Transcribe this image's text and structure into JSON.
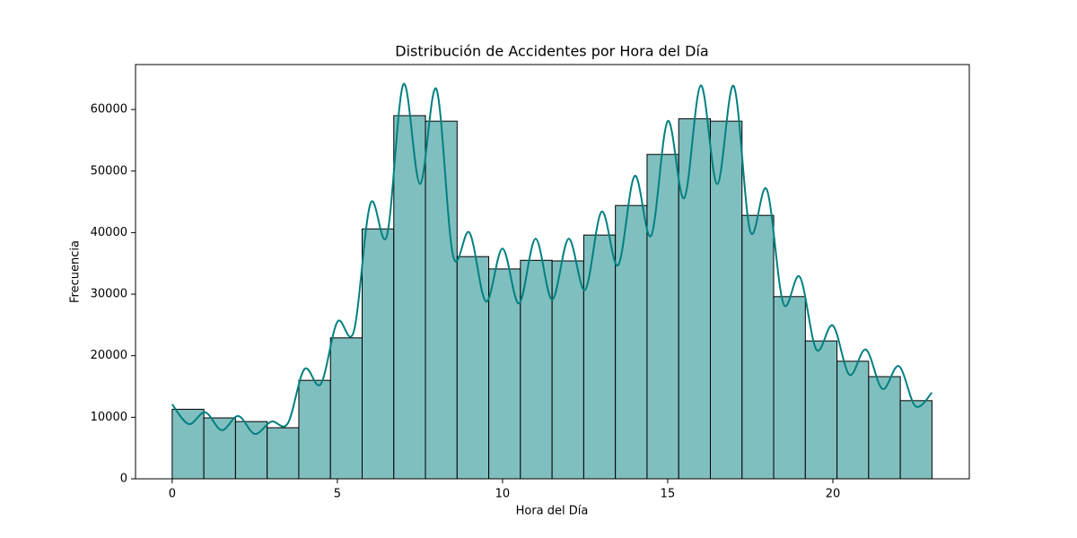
{
  "chart_data": {
    "type": "histogram",
    "title": "Distribución de Accidentes por Hora del Día",
    "x_label": "Hora del Día",
    "y_label": "Frecuencia",
    "bins": [
      0,
      0.9583,
      1.9167,
      2.875,
      3.8333,
      4.7917,
      5.75,
      6.7083,
      7.6667,
      8.625,
      9.5833,
      10.5417,
      11.5,
      12.4583,
      13.4167,
      14.375,
      15.3333,
      16.2917,
      17.25,
      18.2083,
      19.1667,
      20.125,
      21.0833,
      22.0417,
      23
    ],
    "values": [
      11300,
      9900,
      9300,
      8300,
      16000,
      22900,
      40600,
      59000,
      58100,
      36100,
      34100,
      35500,
      35400,
      39600,
      44400,
      52700,
      58500,
      58100,
      42800,
      29600,
      22400,
      19100,
      16600,
      12700
    ],
    "color": "#80bfbf",
    "edgecolor": "#000000",
    "kde": {
      "color": "#008080",
      "x": [
        0,
        0.5,
        1,
        1.5,
        2,
        2.5,
        3,
        3.5,
        4,
        4.5,
        5,
        5.5,
        6,
        6.5,
        7,
        7.5,
        8,
        8.5,
        9,
        9.5,
        10,
        10.5,
        11,
        11.5,
        12,
        12.5,
        13,
        13.5,
        14,
        14.5,
        15,
        15.5,
        16,
        16.5,
        17,
        17.5,
        18,
        18.5,
        19,
        19.5,
        20,
        20.5,
        21,
        21.5,
        22,
        22.5,
        23
      ],
      "values": [
        12100,
        8900,
        10800,
        7900,
        10200,
        7300,
        9300,
        9000,
        17800,
        15400,
        25500,
        24000,
        44700,
        39500,
        64100,
        47900,
        63300,
        36300,
        40000,
        28800,
        37400,
        28500,
        39000,
        29100,
        39000,
        30700,
        43400,
        34700,
        49200,
        39500,
        58100,
        45600,
        63900,
        47900,
        63800,
        40200,
        47000,
        28500,
        32800,
        21000,
        24900,
        16900,
        21000,
        14600,
        18300,
        11800,
        14000
      ]
    },
    "xlim": [
      -1.11,
      24.13
    ],
    "ylim": [
      0,
      67300
    ],
    "xticks": [
      0,
      5,
      10,
      15,
      20
    ],
    "yticks": [
      0,
      10000,
      20000,
      30000,
      40000,
      50000,
      60000
    ],
    "grid": false
  }
}
